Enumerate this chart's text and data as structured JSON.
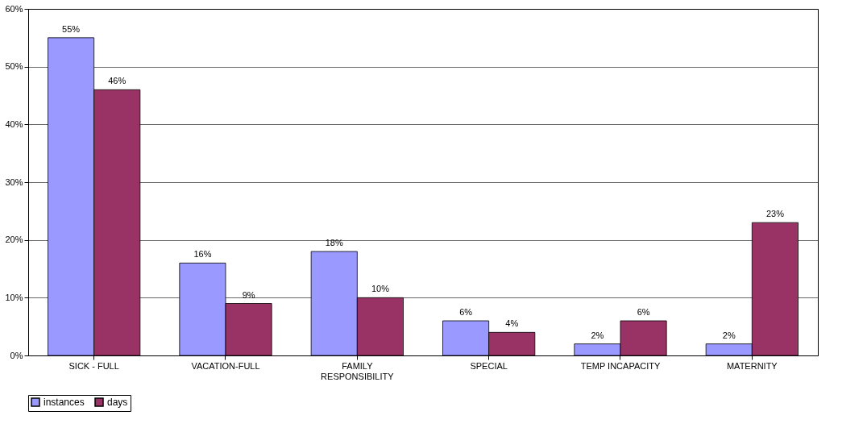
{
  "chart_data": {
    "type": "bar",
    "categories": [
      "SICK - FULL",
      "VACATION-FULL",
      "FAMILY RESPONSIBILITY",
      "SPECIAL",
      "TEMP INCAPACITY",
      "MATERNITY"
    ],
    "series": [
      {
        "name": "instances",
        "color": "#9999ff",
        "values": [
          55,
          16,
          18,
          6,
          2,
          2
        ],
        "value_labels": [
          "55%",
          "16%",
          "18%",
          "6%",
          "2%",
          "2%"
        ]
      },
      {
        "name": "days",
        "color": "#993366",
        "values": [
          46,
          9,
          10,
          4,
          6,
          23
        ],
        "value_labels": [
          "46%",
          "9%",
          "10%",
          "4%",
          "6%",
          "23%"
        ]
      }
    ],
    "ylim": [
      0,
      60
    ],
    "yticks": [
      {
        "value": 0,
        "label": "0%"
      },
      {
        "value": 10,
        "label": "10%"
      },
      {
        "value": 20,
        "label": "20%"
      },
      {
        "value": 30,
        "label": "30%"
      },
      {
        "value": 40,
        "label": "40%"
      },
      {
        "value": 50,
        "label": "50%"
      },
      {
        "value": 60,
        "label": "60%"
      }
    ],
    "grid": "y",
    "legend": "bottom"
  }
}
